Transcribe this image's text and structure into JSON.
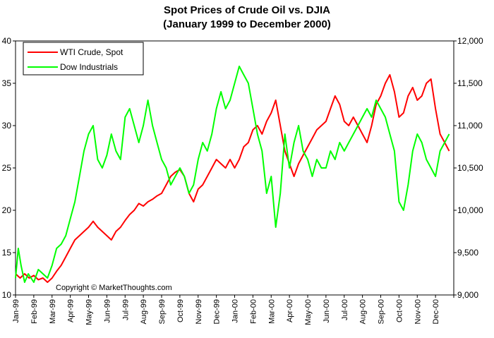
{
  "chart_data": {
    "type": "line",
    "title": "Spot Prices of Crude Oil vs. DJIA",
    "subtitle": "(January 1999 to December 2000)",
    "copyright": "Copyright © MarketThoughts.com",
    "legend_position": "top-left",
    "grid": false,
    "x_labels": [
      "Jan-99",
      "Feb-99",
      "Mar-99",
      "Apr-99",
      "May-99",
      "Jun-99",
      "Jul-99",
      "Aug-99",
      "Sep-99",
      "Oct-99",
      "Nov-99",
      "Dec-99",
      "Jan-00",
      "Feb-00",
      "Mar-00",
      "Apr-00",
      "May-00",
      "Jun-00",
      "Jul-00",
      "Aug-00",
      "Sep-00",
      "Oct-00",
      "Nov-00",
      "Dec-00"
    ],
    "y_left": {
      "ticks": [
        "10",
        "15",
        "20",
        "25",
        "30",
        "35",
        "40"
      ],
      "range": [
        10,
        40
      ]
    },
    "y_right": {
      "ticks": [
        "9,000",
        "9,500",
        "10,000",
        "10,500",
        "11,000",
        "11,500",
        "12,000"
      ],
      "range": [
        9000,
        12000
      ]
    },
    "series": [
      {
        "name": "WTI Crude, Spot",
        "color": "#ff0000",
        "axis": "left",
        "points": [
          [
            0,
            12.5
          ],
          [
            0.25,
            12.0
          ],
          [
            0.5,
            12.5
          ],
          [
            0.75,
            12.0
          ],
          [
            1,
            12.3
          ],
          [
            1.25,
            11.8
          ],
          [
            1.5,
            12.0
          ],
          [
            1.75,
            11.5
          ],
          [
            2,
            12.0
          ],
          [
            2.25,
            12.8
          ],
          [
            2.5,
            13.5
          ],
          [
            2.75,
            14.5
          ],
          [
            3,
            15.5
          ],
          [
            3.25,
            16.5
          ],
          [
            3.5,
            17.0
          ],
          [
            3.75,
            17.5
          ],
          [
            4,
            18.0
          ],
          [
            4.25,
            18.7
          ],
          [
            4.5,
            18.0
          ],
          [
            4.75,
            17.5
          ],
          [
            5,
            17.0
          ],
          [
            5.25,
            16.5
          ],
          [
            5.5,
            17.5
          ],
          [
            5.75,
            18.0
          ],
          [
            6,
            18.8
          ],
          [
            6.25,
            19.5
          ],
          [
            6.5,
            20.0
          ],
          [
            6.75,
            20.8
          ],
          [
            7,
            20.5
          ],
          [
            7.25,
            21.0
          ],
          [
            7.5,
            21.3
          ],
          [
            7.75,
            21.7
          ],
          [
            8,
            22.0
          ],
          [
            8.25,
            23.0
          ],
          [
            8.5,
            24.0
          ],
          [
            8.75,
            24.5
          ],
          [
            9,
            24.8
          ],
          [
            9.25,
            24.0
          ],
          [
            9.5,
            22.0
          ],
          [
            9.75,
            21.0
          ],
          [
            10,
            22.5
          ],
          [
            10.25,
            23.0
          ],
          [
            10.5,
            24.0
          ],
          [
            10.75,
            25.0
          ],
          [
            11,
            26.0
          ],
          [
            11.25,
            25.5
          ],
          [
            11.5,
            25.0
          ],
          [
            11.75,
            26.0
          ],
          [
            12,
            25.0
          ],
          [
            12.25,
            26.0
          ],
          [
            12.5,
            27.5
          ],
          [
            12.75,
            28.0
          ],
          [
            13,
            29.5
          ],
          [
            13.25,
            30.0
          ],
          [
            13.5,
            29.0
          ],
          [
            13.75,
            30.5
          ],
          [
            14,
            31.5
          ],
          [
            14.25,
            33.0
          ],
          [
            14.5,
            30.0
          ],
          [
            14.75,
            27.0
          ],
          [
            15,
            25.5
          ],
          [
            15.25,
            24.0
          ],
          [
            15.5,
            25.5
          ],
          [
            15.75,
            26.5
          ],
          [
            16,
            27.5
          ],
          [
            16.25,
            28.5
          ],
          [
            16.5,
            29.5
          ],
          [
            16.75,
            30.0
          ],
          [
            17,
            30.5
          ],
          [
            17.25,
            32.0
          ],
          [
            17.5,
            33.5
          ],
          [
            17.75,
            32.5
          ],
          [
            18,
            30.5
          ],
          [
            18.25,
            30.0
          ],
          [
            18.5,
            31.0
          ],
          [
            18.75,
            30.0
          ],
          [
            19,
            29.0
          ],
          [
            19.25,
            28.0
          ],
          [
            19.5,
            30.0
          ],
          [
            19.75,
            32.5
          ],
          [
            20,
            33.5
          ],
          [
            20.25,
            35.0
          ],
          [
            20.5,
            36.0
          ],
          [
            20.75,
            34.0
          ],
          [
            21,
            31.0
          ],
          [
            21.25,
            31.5
          ],
          [
            21.5,
            33.5
          ],
          [
            21.75,
            34.5
          ],
          [
            22,
            33.0
          ],
          [
            22.25,
            33.5
          ],
          [
            22.5,
            35.0
          ],
          [
            22.75,
            35.5
          ],
          [
            23,
            32.0
          ],
          [
            23.25,
            29.0
          ],
          [
            23.5,
            28.0
          ],
          [
            23.75,
            27.0
          ]
        ]
      },
      {
        "name": "Dow Industrials",
        "color": "#00ff00",
        "axis": "right",
        "points": [
          [
            0,
            9200
          ],
          [
            0.15,
            9550
          ],
          [
            0.3,
            9350
          ],
          [
            0.5,
            9150
          ],
          [
            0.7,
            9250
          ],
          [
            1,
            9150
          ],
          [
            1.25,
            9300
          ],
          [
            1.5,
            9250
          ],
          [
            1.75,
            9200
          ],
          [
            2,
            9350
          ],
          [
            2.25,
            9550
          ],
          [
            2.5,
            9600
          ],
          [
            2.75,
            9700
          ],
          [
            3,
            9900
          ],
          [
            3.25,
            10100
          ],
          [
            3.5,
            10400
          ],
          [
            3.75,
            10700
          ],
          [
            4,
            10900
          ],
          [
            4.25,
            11000
          ],
          [
            4.5,
            10600
          ],
          [
            4.75,
            10500
          ],
          [
            5,
            10650
          ],
          [
            5.25,
            10900
          ],
          [
            5.5,
            10700
          ],
          [
            5.75,
            10600
          ],
          [
            6,
            11100
          ],
          [
            6.25,
            11200
          ],
          [
            6.5,
            11000
          ],
          [
            6.75,
            10800
          ],
          [
            7,
            11000
          ],
          [
            7.25,
            11300
          ],
          [
            7.5,
            11000
          ],
          [
            7.75,
            10800
          ],
          [
            8,
            10600
          ],
          [
            8.25,
            10500
          ],
          [
            8.5,
            10300
          ],
          [
            8.75,
            10400
          ],
          [
            9,
            10500
          ],
          [
            9.25,
            10400
          ],
          [
            9.5,
            10200
          ],
          [
            9.75,
            10300
          ],
          [
            10,
            10600
          ],
          [
            10.25,
            10800
          ],
          [
            10.5,
            10700
          ],
          [
            10.75,
            10900
          ],
          [
            11,
            11200
          ],
          [
            11.25,
            11400
          ],
          [
            11.5,
            11200
          ],
          [
            11.75,
            11300
          ],
          [
            12,
            11500
          ],
          [
            12.25,
            11700
          ],
          [
            12.5,
            11600
          ],
          [
            12.75,
            11500
          ],
          [
            13,
            11200
          ],
          [
            13.25,
            10900
          ],
          [
            13.5,
            10700
          ],
          [
            13.75,
            10200
          ],
          [
            14,
            10400
          ],
          [
            14.25,
            9800
          ],
          [
            14.5,
            10200
          ],
          [
            14.75,
            10900
          ],
          [
            15,
            10500
          ],
          [
            15.25,
            10800
          ],
          [
            15.5,
            11000
          ],
          [
            15.75,
            10700
          ],
          [
            16,
            10600
          ],
          [
            16.25,
            10400
          ],
          [
            16.5,
            10600
          ],
          [
            16.75,
            10500
          ],
          [
            17,
            10500
          ],
          [
            17.25,
            10700
          ],
          [
            17.5,
            10600
          ],
          [
            17.75,
            10800
          ],
          [
            18,
            10700
          ],
          [
            18.25,
            10800
          ],
          [
            18.5,
            10900
          ],
          [
            18.75,
            11000
          ],
          [
            19,
            11100
          ],
          [
            19.25,
            11200
          ],
          [
            19.5,
            11100
          ],
          [
            19.75,
            11300
          ],
          [
            20,
            11200
          ],
          [
            20.25,
            11100
          ],
          [
            20.5,
            10900
          ],
          [
            20.75,
            10700
          ],
          [
            21,
            10100
          ],
          [
            21.25,
            10000
          ],
          [
            21.5,
            10300
          ],
          [
            21.75,
            10700
          ],
          [
            22,
            10900
          ],
          [
            22.25,
            10800
          ],
          [
            22.5,
            10600
          ],
          [
            22.75,
            10500
          ],
          [
            23,
            10400
          ],
          [
            23.25,
            10700
          ],
          [
            23.5,
            10800
          ],
          [
            23.75,
            10900
          ]
        ]
      }
    ]
  }
}
